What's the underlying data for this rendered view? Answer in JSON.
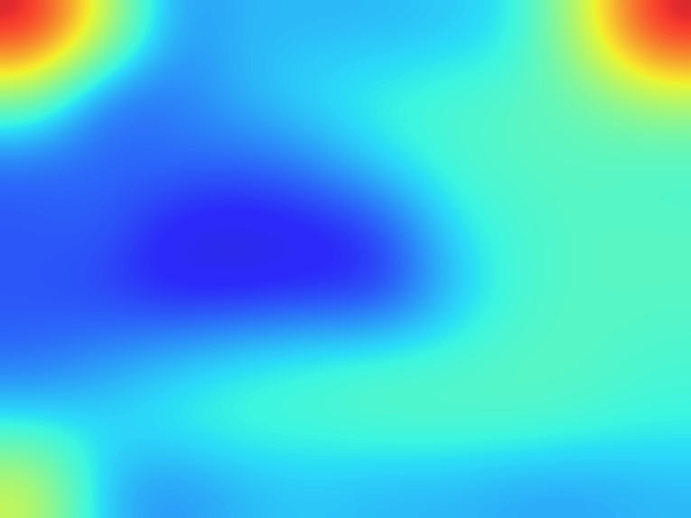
{
  "chart_data": {
    "type": "heatmap",
    "cells": [
      [
        0.95,
        0.6,
        0.25,
        0.3,
        0.3,
        0.3,
        0.32,
        0.35,
        0.6,
        0.95
      ],
      [
        0.5,
        0.2,
        0.22,
        0.3,
        0.35,
        0.38,
        0.4,
        0.42,
        0.45,
        0.55
      ],
      [
        0.2,
        0.2,
        0.22,
        0.2,
        0.25,
        0.35,
        0.4,
        0.42,
        0.42,
        0.4
      ],
      [
        0.18,
        0.2,
        0.1,
        0.08,
        0.1,
        0.15,
        0.35,
        0.4,
        0.42,
        0.42
      ],
      [
        0.18,
        0.15,
        0.1,
        0.1,
        0.12,
        0.12,
        0.3,
        0.4,
        0.42,
        0.42
      ],
      [
        0.2,
        0.25,
        0.3,
        0.35,
        0.38,
        0.4,
        0.4,
        0.42,
        0.42,
        0.4
      ],
      [
        0.35,
        0.35,
        0.38,
        0.4,
        0.4,
        0.42,
        0.42,
        0.42,
        0.4,
        0.38
      ],
      [
        0.6,
        0.3,
        0.25,
        0.3,
        0.32,
        0.3,
        0.3,
        0.28,
        0.28,
        0.3
      ]
    ],
    "color_range": [
      0,
      1
    ],
    "tick_labels": false
  }
}
